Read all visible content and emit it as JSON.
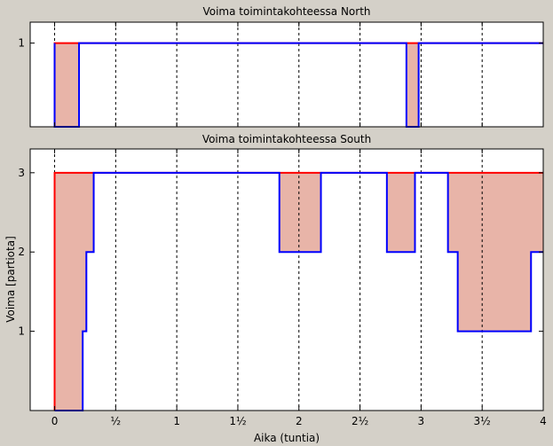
{
  "chart_data": [
    {
      "type": "line",
      "title": "Voima toimintakohteessa North",
      "xlim": [
        -0.2,
        4
      ],
      "ylim": [
        0,
        1.25
      ],
      "yticks": [
        1
      ],
      "grid": "vertical-dashed",
      "series": [
        {
          "role": "available",
          "color": "#ff0000",
          "x": [
            0,
            0,
            4
          ],
          "y": [
            0,
            1,
            1
          ]
        },
        {
          "role": "actual",
          "color": "#0000ff",
          "x": [
            0,
            0,
            0.1,
            0.1,
            0.2,
            0.2,
            2.88,
            2.88,
            2.98,
            2.98,
            4
          ],
          "y": [
            1,
            0,
            0,
            0,
            0,
            1,
            1,
            0,
            0,
            1,
            1
          ]
        }
      ],
      "shaded_gap_color": "#e8b4a8"
    },
    {
      "type": "line",
      "title": "Voima toimintakohteessa South",
      "xlabel": "Aika (tuntia)",
      "ylabel": "Voima [partiota]",
      "xlim": [
        -0.2,
        4
      ],
      "ylim": [
        0,
        3.3
      ],
      "yticks": [
        1,
        2,
        3
      ],
      "xticks": [
        0,
        0.5,
        1,
        1.5,
        2,
        2.5,
        3,
        3.5,
        4
      ],
      "xticklabels": [
        "0",
        "½",
        "1",
        "1½",
        "2",
        "2½",
        "3",
        "3½",
        "4"
      ],
      "grid": "vertical-dashed",
      "series": [
        {
          "role": "available",
          "color": "#ff0000",
          "x": [
            0,
            0,
            0.32,
            0.32,
            2.98,
            2.98,
            3.1,
            3.1,
            3.22,
            3.22,
            4
          ],
          "y": [
            0,
            3,
            3,
            3,
            3,
            3,
            3,
            3,
            3,
            3,
            3
          ]
        },
        {
          "role": "actual",
          "color": "#0000ff",
          "x": [
            0,
            0.23,
            0.23,
            0.26,
            0.26,
            0.32,
            0.32,
            0.33,
            0.33,
            1.84,
            1.84,
            2.18,
            2.18,
            2.72,
            2.72,
            2.95,
            2.95,
            3.22,
            3.22,
            3.3,
            3.3,
            3.9,
            3.9,
            4
          ],
          "y": [
            0,
            0,
            1,
            1,
            2,
            2,
            3,
            3,
            3,
            3,
            2,
            2,
            3,
            3,
            2,
            2,
            3,
            3,
            2,
            2,
            1,
            1,
            2,
            2
          ]
        }
      ],
      "shaded_gap_color": "#e8b4a8"
    }
  ]
}
